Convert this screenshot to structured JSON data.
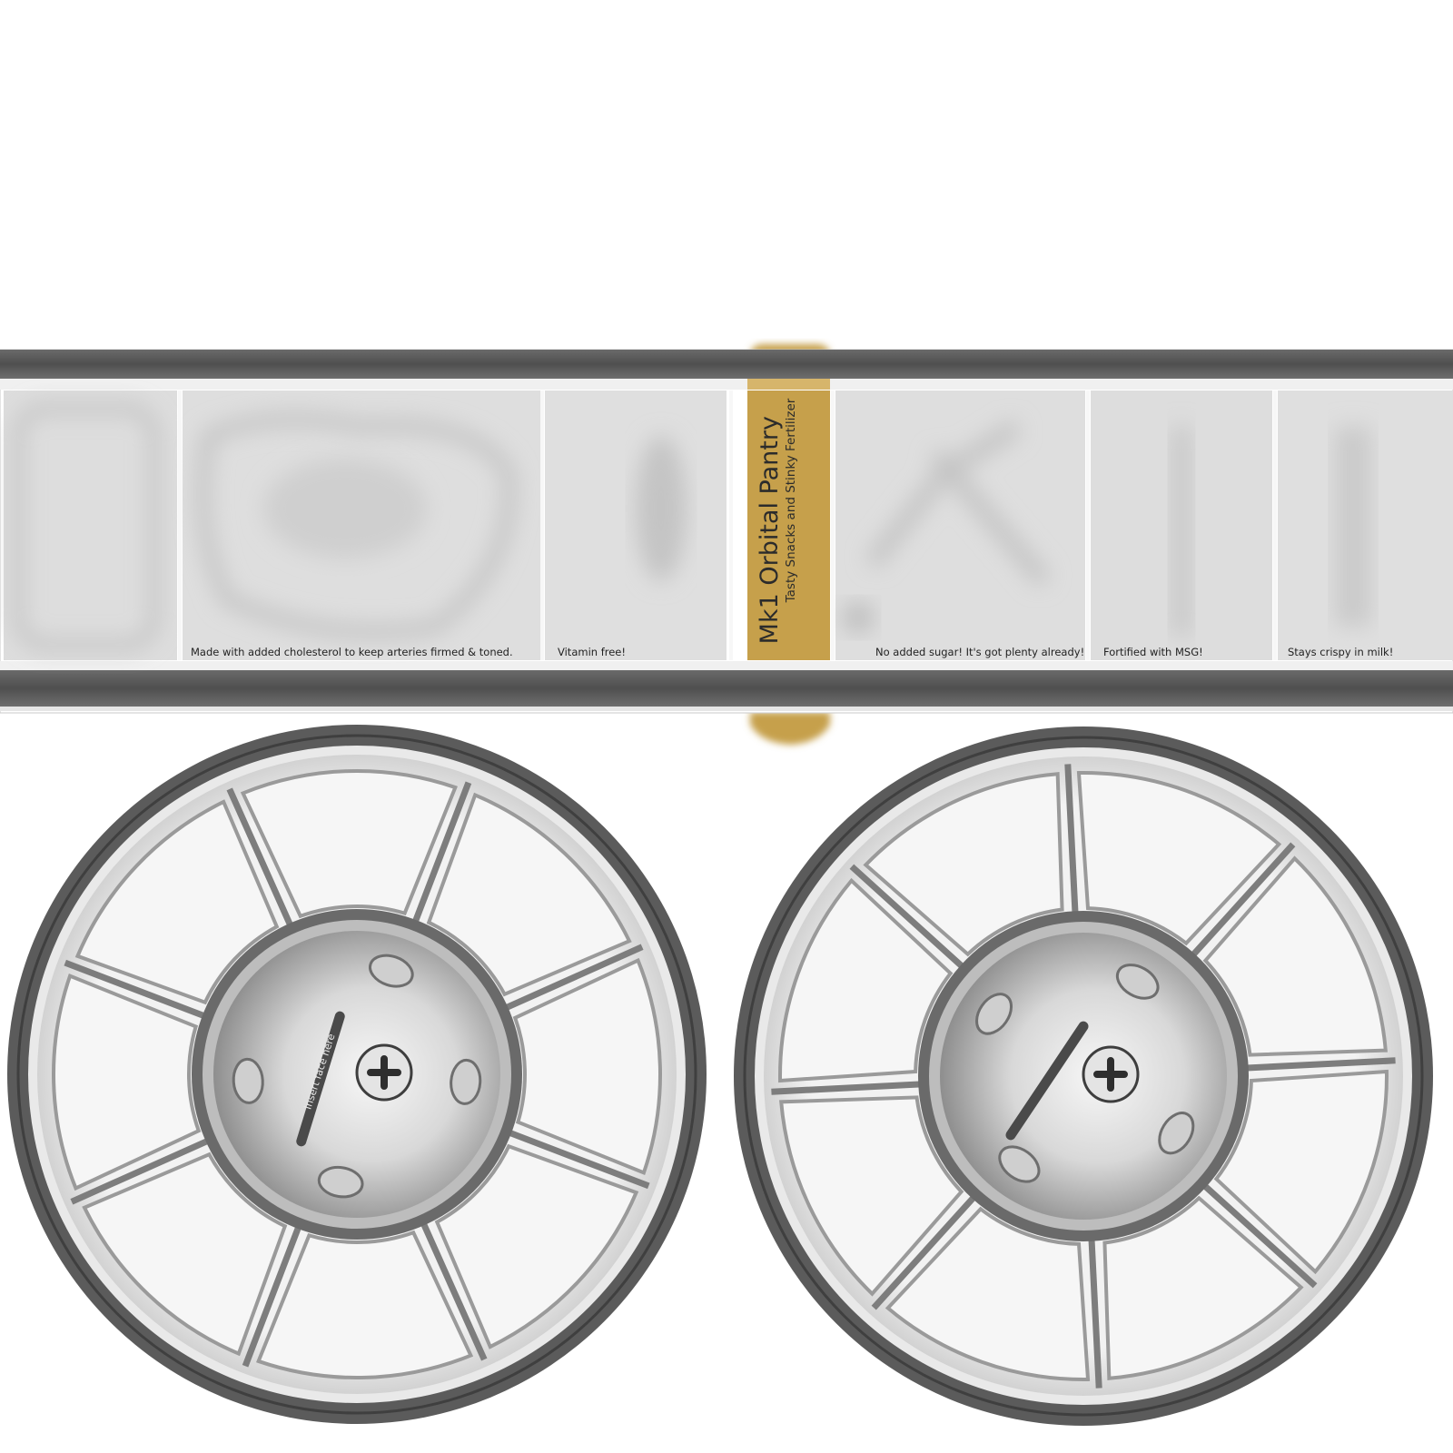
{
  "band": {
    "title": "Mk1 Orbital Pantry",
    "subtitle": "Tasty Snacks and Stinky Fertilizer",
    "label_color": "#c6a04b",
    "frame_color": "#5a5a5a",
    "panel_color": "#dcdcdc",
    "captions": [
      "Made with added cholesterol to keep arteries firmed & toned.",
      "Vitamin free!",
      "No added sugar! It's got plenty already!",
      "Fortified with MSG!",
      "Stays crispy in milk!"
    ]
  },
  "caps": [
    {
      "label": "Insert face here"
    },
    {
      "label": ""
    }
  ]
}
